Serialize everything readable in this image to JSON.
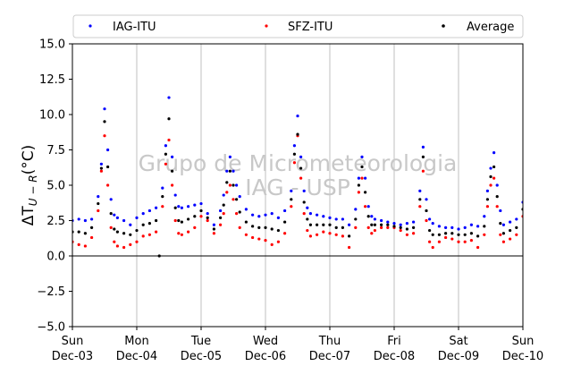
{
  "chart_data": {
    "type": "scatter",
    "ylabel": "ΔT",
    "ylabel_sub": "U − R",
    "ylabel_unit": "(°C)",
    "ylim": [
      -5.0,
      15.0
    ],
    "yticks": [
      "−5.0",
      "−2.5",
      "0.0",
      "2.5",
      "5.0",
      "7.5",
      "10.0",
      "12.5",
      "15.0"
    ],
    "ytick_values": [
      -5.0,
      -2.5,
      0.0,
      2.5,
      5.0,
      7.5,
      10.0,
      12.5,
      15.0
    ],
    "xlim": [
      0,
      7
    ],
    "xticks": [
      {
        "day": "Sun",
        "date": "Dec-03",
        "x": 0
      },
      {
        "day": "Mon",
        "date": "Dec-04",
        "x": 1
      },
      {
        "day": "Tue",
        "date": "Dec-05",
        "x": 2
      },
      {
        "day": "Wed",
        "date": "Dec-06",
        "x": 3
      },
      {
        "day": "Thu",
        "date": "Dec-07",
        "x": 4
      },
      {
        "day": "Fri",
        "date": "Dec-08",
        "x": 5
      },
      {
        "day": "Sat",
        "date": "Dec-09",
        "x": 6
      },
      {
        "day": "Sun",
        "date": "Dec-10",
        "x": 7
      }
    ],
    "grid": "vertical",
    "reference_line_y": 0,
    "legend_position": "top",
    "watermark": [
      "Grupo de Micrometeorologia",
      "IAG - USP"
    ],
    "series": [
      {
        "name": "IAG-ITU",
        "color": "#0000ff",
        "x": [
          0.0,
          0.1,
          0.2,
          0.3,
          0.4,
          0.45,
          0.5,
          0.55,
          0.6,
          0.65,
          0.7,
          0.8,
          0.9,
          1.0,
          1.1,
          1.2,
          1.3,
          1.4,
          1.45,
          1.5,
          1.55,
          1.6,
          1.65,
          1.7,
          1.8,
          1.9,
          2.0,
          2.1,
          2.2,
          2.3,
          2.35,
          2.4,
          2.45,
          2.5,
          2.55,
          2.6,
          2.7,
          2.8,
          2.9,
          3.0,
          3.1,
          3.2,
          3.3,
          3.4,
          3.45,
          3.5,
          3.55,
          3.6,
          3.65,
          3.7,
          3.8,
          3.9,
          4.0,
          4.1,
          4.2,
          4.3,
          4.4,
          4.45,
          4.5,
          4.55,
          4.6,
          4.65,
          4.7,
          4.8,
          4.9,
          5.0,
          5.1,
          5.2,
          5.3,
          5.4,
          5.45,
          5.5,
          5.55,
          5.6,
          5.7,
          5.8,
          5.9,
          6.0,
          6.1,
          6.2,
          6.3,
          6.4,
          6.45,
          6.5,
          6.55,
          6.6,
          6.65,
          6.7,
          6.8,
          6.9,
          7.0
        ],
        "y": [
          2.5,
          2.6,
          2.5,
          2.6,
          4.2,
          6.5,
          10.4,
          7.5,
          4.0,
          2.9,
          2.7,
          2.5,
          2.2,
          2.7,
          3.0,
          3.2,
          3.4,
          4.8,
          7.8,
          11.2,
          7.0,
          4.3,
          3.5,
          3.4,
          3.5,
          3.6,
          3.7,
          3.0,
          2.2,
          3.2,
          4.3,
          6.0,
          7.0,
          6.0,
          5.0,
          4.2,
          3.3,
          2.9,
          2.8,
          2.9,
          3.0,
          2.7,
          3.2,
          4.6,
          7.8,
          9.9,
          7.0,
          4.6,
          3.4,
          3.0,
          2.9,
          2.8,
          2.7,
          2.6,
          2.6,
          2.2,
          3.3,
          5.5,
          7.0,
          5.5,
          3.5,
          2.8,
          2.6,
          2.5,
          2.4,
          2.3,
          2.2,
          2.3,
          2.4,
          4.6,
          7.7,
          4.0,
          2.6,
          2.3,
          2.1,
          2.0,
          2.0,
          1.9,
          2.0,
          2.2,
          2.1,
          2.8,
          4.6,
          6.2,
          7.3,
          5.0,
          3.2,
          2.2,
          2.4,
          2.6,
          3.8
        ]
      },
      {
        "name": "SFZ-ITU",
        "color": "#ff0000",
        "x": [
          0.0,
          0.1,
          0.2,
          0.3,
          0.4,
          0.45,
          0.5,
          0.55,
          0.6,
          0.65,
          0.7,
          0.8,
          0.9,
          1.0,
          1.1,
          1.2,
          1.3,
          1.4,
          1.45,
          1.5,
          1.55,
          1.6,
          1.65,
          1.7,
          1.8,
          1.9,
          2.0,
          2.1,
          2.2,
          2.3,
          2.35,
          2.4,
          2.45,
          2.5,
          2.55,
          2.6,
          2.7,
          2.8,
          2.9,
          3.0,
          3.1,
          3.2,
          3.3,
          3.4,
          3.45,
          3.5,
          3.55,
          3.6,
          3.65,
          3.7,
          3.8,
          3.9,
          4.0,
          4.1,
          4.2,
          4.3,
          4.4,
          4.45,
          4.5,
          4.55,
          4.6,
          4.65,
          4.7,
          4.8,
          4.9,
          5.0,
          5.1,
          5.2,
          5.3,
          5.4,
          5.45,
          5.5,
          5.55,
          5.6,
          5.7,
          5.8,
          5.9,
          6.0,
          6.1,
          6.2,
          6.3,
          6.4,
          6.45,
          6.5,
          6.55,
          6.6,
          6.65,
          6.7,
          6.8,
          6.9,
          7.0
        ],
        "y": [
          1.0,
          0.8,
          0.7,
          1.3,
          3.2,
          6.0,
          8.5,
          5.0,
          2.0,
          1.0,
          0.7,
          0.6,
          0.8,
          1.0,
          1.4,
          1.5,
          1.7,
          3.5,
          6.5,
          8.2,
          5.0,
          2.5,
          1.6,
          1.5,
          1.7,
          2.0,
          2.8,
          2.5,
          1.6,
          2.2,
          3.0,
          4.5,
          5.0,
          4.0,
          3.0,
          2.0,
          1.5,
          1.3,
          1.2,
          1.1,
          0.8,
          1.0,
          1.6,
          3.5,
          6.6,
          8.5,
          5.5,
          3.0,
          1.8,
          1.4,
          1.5,
          1.7,
          1.6,
          1.5,
          1.4,
          0.6,
          2.0,
          4.5,
          5.5,
          3.5,
          2.0,
          1.6,
          1.8,
          2.0,
          2.0,
          2.0,
          1.8,
          1.5,
          1.6,
          3.5,
          6.0,
          2.5,
          1.0,
          0.6,
          1.0,
          1.3,
          1.2,
          1.0,
          1.0,
          1.1,
          0.6,
          1.5,
          3.5,
          5.0,
          5.5,
          3.5,
          1.5,
          1.0,
          1.2,
          1.5,
          2.8
        ]
      },
      {
        "name": "Average",
        "color": "#000000",
        "x": [
          0.0,
          0.1,
          0.2,
          0.3,
          0.4,
          0.45,
          0.5,
          0.55,
          0.6,
          0.65,
          0.7,
          0.8,
          0.9,
          1.0,
          1.1,
          1.2,
          1.3,
          1.35,
          1.4,
          1.45,
          1.5,
          1.55,
          1.6,
          1.65,
          1.7,
          1.8,
          1.9,
          2.0,
          2.1,
          2.2,
          2.3,
          2.35,
          2.4,
          2.45,
          2.5,
          2.55,
          2.6,
          2.7,
          2.8,
          2.9,
          3.0,
          3.1,
          3.2,
          3.3,
          3.4,
          3.45,
          3.5,
          3.55,
          3.6,
          3.65,
          3.7,
          3.8,
          3.9,
          4.0,
          4.1,
          4.2,
          4.3,
          4.4,
          4.45,
          4.5,
          4.55,
          4.6,
          4.65,
          4.7,
          4.8,
          4.9,
          5.0,
          5.1,
          5.2,
          5.3,
          5.4,
          5.45,
          5.5,
          5.55,
          5.6,
          5.7,
          5.8,
          5.9,
          6.0,
          6.1,
          6.2,
          6.3,
          6.4,
          6.45,
          6.5,
          6.55,
          6.6,
          6.65,
          6.7,
          6.8,
          6.9,
          7.0
        ],
        "y": [
          1.7,
          1.7,
          1.6,
          2.0,
          3.7,
          6.2,
          9.5,
          6.3,
          3.0,
          1.9,
          1.7,
          1.6,
          1.5,
          1.8,
          2.2,
          2.3,
          2.5,
          0.0,
          4.2,
          7.2,
          9.7,
          6.0,
          3.4,
          2.5,
          2.4,
          2.6,
          2.8,
          3.2,
          2.7,
          1.9,
          2.7,
          3.6,
          5.2,
          6.0,
          5.0,
          4.0,
          3.1,
          2.4,
          2.1,
          2.0,
          2.0,
          1.9,
          1.8,
          2.4,
          4.0,
          7.2,
          8.6,
          6.2,
          3.8,
          2.6,
          2.2,
          2.2,
          2.2,
          2.2,
          2.0,
          2.0,
          1.4,
          2.6,
          5.0,
          6.3,
          4.5,
          2.8,
          2.2,
          2.2,
          2.2,
          2.2,
          2.1,
          2.0,
          1.9,
          2.0,
          4.0,
          7.0,
          3.2,
          1.8,
          1.5,
          1.5,
          1.6,
          1.6,
          1.5,
          1.5,
          1.6,
          1.4,
          2.1,
          4.0,
          5.6,
          6.3,
          4.2,
          2.3,
          1.6,
          1.8,
          2.0,
          3.3
        ]
      }
    ]
  }
}
